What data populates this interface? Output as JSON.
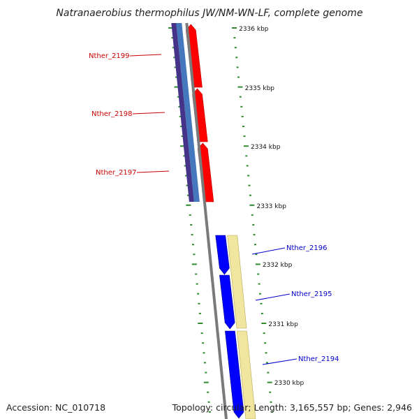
{
  "title": "Natranaerobius thermophilus JW/NM-WN-LF, complete genome",
  "footer": {
    "accession": "Accession: NC_010718",
    "stats": "Topology: circular; Length: 3,165,557 bp; Genes: 2,946"
  },
  "colors": {
    "reverse_cds": "#ff0000",
    "forward_cds": "#0000ff",
    "reverse_rna_feature": "#4477bb",
    "reverse_gene_feature": "#443388",
    "forward_rna_feature": "#f0e6a0",
    "backbone": "#7a7a7a",
    "tick": "#2e8b2e",
    "reverse_label": "#cc0000",
    "forward_label": "#0000cc"
  },
  "ruler": {
    "unit": "kbp",
    "labels": [
      "2336 kbp",
      "2335 kbp",
      "2334 kbp",
      "2333 kbp",
      "2332 kbp",
      "2331 kbp",
      "2330 kbp"
    ]
  },
  "genes": [
    {
      "name": "Nther_2199",
      "strand": "reverse"
    },
    {
      "name": "Nther_2198",
      "strand": "reverse"
    },
    {
      "name": "Nther_2197",
      "strand": "reverse"
    },
    {
      "name": "Nther_2196",
      "strand": "forward"
    },
    {
      "name": "Nther_2195",
      "strand": "forward"
    },
    {
      "name": "Nther_2194",
      "strand": "forward"
    }
  ]
}
